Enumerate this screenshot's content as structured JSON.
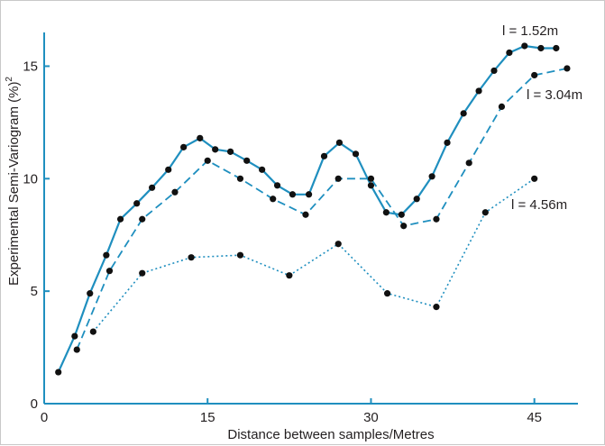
{
  "chart_data": {
    "type": "line",
    "title": "",
    "xlabel": "Distance between samples/Metres",
    "ylabel_main": "Experimental Semi-Variogram (%)",
    "ylabel_sup": "2",
    "xlim": [
      0,
      49
    ],
    "ylim": [
      0,
      16.5
    ],
    "xticks": [
      "0",
      "15",
      "30",
      "45"
    ],
    "yticks": [
      "0",
      "5",
      "10",
      "15"
    ],
    "grid": false,
    "series": [
      {
        "name": "l = 1.52m",
        "style": "solid",
        "color": "#1f8fbf",
        "x": [
          1.3,
          2.8,
          4.2,
          5.7,
          7.0,
          8.5,
          9.9,
          11.4,
          12.8,
          14.3,
          15.7,
          17.1,
          18.6,
          20.0,
          21.4,
          22.8,
          24.3,
          25.7,
          27.1,
          28.6,
          30.0,
          31.4,
          32.8,
          34.2,
          35.6,
          37.0,
          38.5,
          39.9,
          41.3,
          42.7,
          44.1,
          45.6,
          47.0
        ],
        "y": [
          1.4,
          3.0,
          4.9,
          6.6,
          8.2,
          8.9,
          9.6,
          10.4,
          11.4,
          11.8,
          11.3,
          11.2,
          10.8,
          10.4,
          9.7,
          9.3,
          9.3,
          11.0,
          11.6,
          11.1,
          9.7,
          8.5,
          8.4,
          9.1,
          10.1,
          11.6,
          12.9,
          13.9,
          14.8,
          15.6,
          15.9,
          15.8,
          15.8
        ]
      },
      {
        "name": "l = 3.04m",
        "style": "dashed",
        "color": "#1f8fbf",
        "x": [
          3.0,
          6.0,
          9.0,
          12.0,
          15.0,
          18.0,
          21.0,
          24.0,
          27.0,
          30.0,
          33.0,
          36.0,
          39.0,
          42.0,
          45.0,
          48.0
        ],
        "y": [
          2.4,
          5.9,
          8.2,
          9.4,
          10.8,
          10.0,
          9.1,
          8.4,
          10.0,
          10.0,
          7.9,
          8.2,
          10.7,
          13.2,
          14.6,
          14.9
        ]
      },
      {
        "name": "l = 4.56m",
        "style": "dotted",
        "color": "#1f8fbf",
        "x": [
          4.5,
          9.0,
          13.5,
          18.0,
          22.5,
          27.0,
          31.5,
          36.0,
          40.5,
          45.0
        ],
        "y": [
          3.2,
          5.8,
          6.5,
          6.6,
          5.7,
          7.1,
          4.9,
          4.3,
          8.5,
          10.0
        ]
      }
    ]
  }
}
